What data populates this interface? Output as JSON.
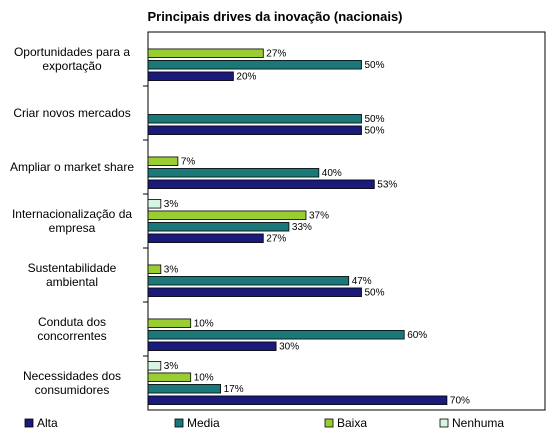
{
  "chart_data": {
    "type": "bar",
    "orientation": "horizontal",
    "title": "Principais drives da inovação (nacionais)",
    "categories": [
      [
        "Oportunidades para a",
        "exportação"
      ],
      [
        "Criar novos mercados"
      ],
      [
        "Ampliar o market share"
      ],
      [
        "Internacionalização da",
        "empresa"
      ],
      [
        "Sustentabilidade",
        "ambiental"
      ],
      [
        "Conduta dos",
        "concorrentes"
      ],
      [
        "Necessidades dos",
        "consumidores"
      ]
    ],
    "series": [
      {
        "name": "Alta",
        "color": "#1a1a7a",
        "values": [
          20,
          50,
          53,
          27,
          50,
          30,
          70
        ]
      },
      {
        "name": "Media",
        "color": "#1b7878",
        "values": [
          50,
          50,
          40,
          33,
          47,
          60,
          17
        ]
      },
      {
        "name": "Baixa",
        "color": "#9acd32",
        "values": [
          27,
          null,
          7,
          37,
          3,
          10,
          10
        ]
      },
      {
        "name": "Nenhuma",
        "color": "#d6f5e3",
        "values": [
          null,
          null,
          null,
          3,
          null,
          null,
          3
        ]
      }
    ],
    "value_suffix": "%",
    "xlim": [
      0,
      100
    ],
    "grid": false,
    "legend_position": "bottom"
  }
}
